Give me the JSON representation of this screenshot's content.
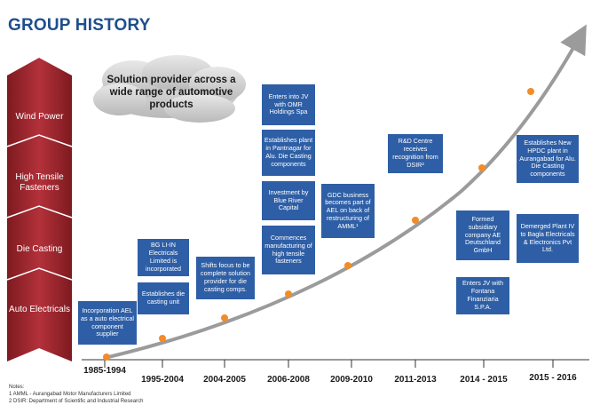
{
  "title": "GROUP HISTORY",
  "cloud_text": "Solution provider across a wide range of automotive products",
  "sidebar": {
    "items": [
      {
        "label": "Wind Power"
      },
      {
        "label": "High Tensile Fasteners"
      },
      {
        "label": "Die Casting"
      },
      {
        "label": "Auto Electricals"
      }
    ]
  },
  "years": [
    "1985-1994",
    "1995-2004",
    "2004-2005",
    "2006-2008",
    "2009-2010",
    "2011-2013",
    "2014 - 2015",
    "2015 - 2016"
  ],
  "events": [
    {
      "text": "Incorporation AEL as a auto electrical component supplier"
    },
    {
      "text": "BG LI-IN Electricals Limited is incorporated"
    },
    {
      "text": "Establishes die casting unit"
    },
    {
      "text": "Shifts focus to be complete solution provider for die casting comps."
    },
    {
      "text": "Enters into JV with OMR Holdings Spa"
    },
    {
      "text": "Establishes plant in Pantnagar for Alu. Die Casting components"
    },
    {
      "text": "Investment by Blue River Capital"
    },
    {
      "text": "Commences manufacturing of high tensile fasteners"
    },
    {
      "text": "GDC business becomes part of AEL on back of restructuring of AMML¹"
    },
    {
      "text": "R&D Centre receives recognition from DSIR²"
    },
    {
      "text": "Formed subsidiary company AE Deutschland GmbH"
    },
    {
      "text": "Enters JV with Fontana Finanziaria S.P.A."
    },
    {
      "text": "Establishes New HPDC plant in Aurangabad for Alu. Die Casting components"
    },
    {
      "text": "Demerged Plant IV to Bagla Electricals & Electronics Pvt Ltd."
    }
  ],
  "notes": {
    "heading": "Notes:",
    "items": [
      "1 AMML - Aurangabad Motor Manufacturers Limited",
      "2 DSIR: Department of Scientific and Industrial Research"
    ]
  },
  "colors": {
    "title": "#1f4e8c",
    "box": "#2e5fa6",
    "sidebar": "#a8262d",
    "dot": "#f28c28",
    "curve": "#9b9b9b"
  }
}
